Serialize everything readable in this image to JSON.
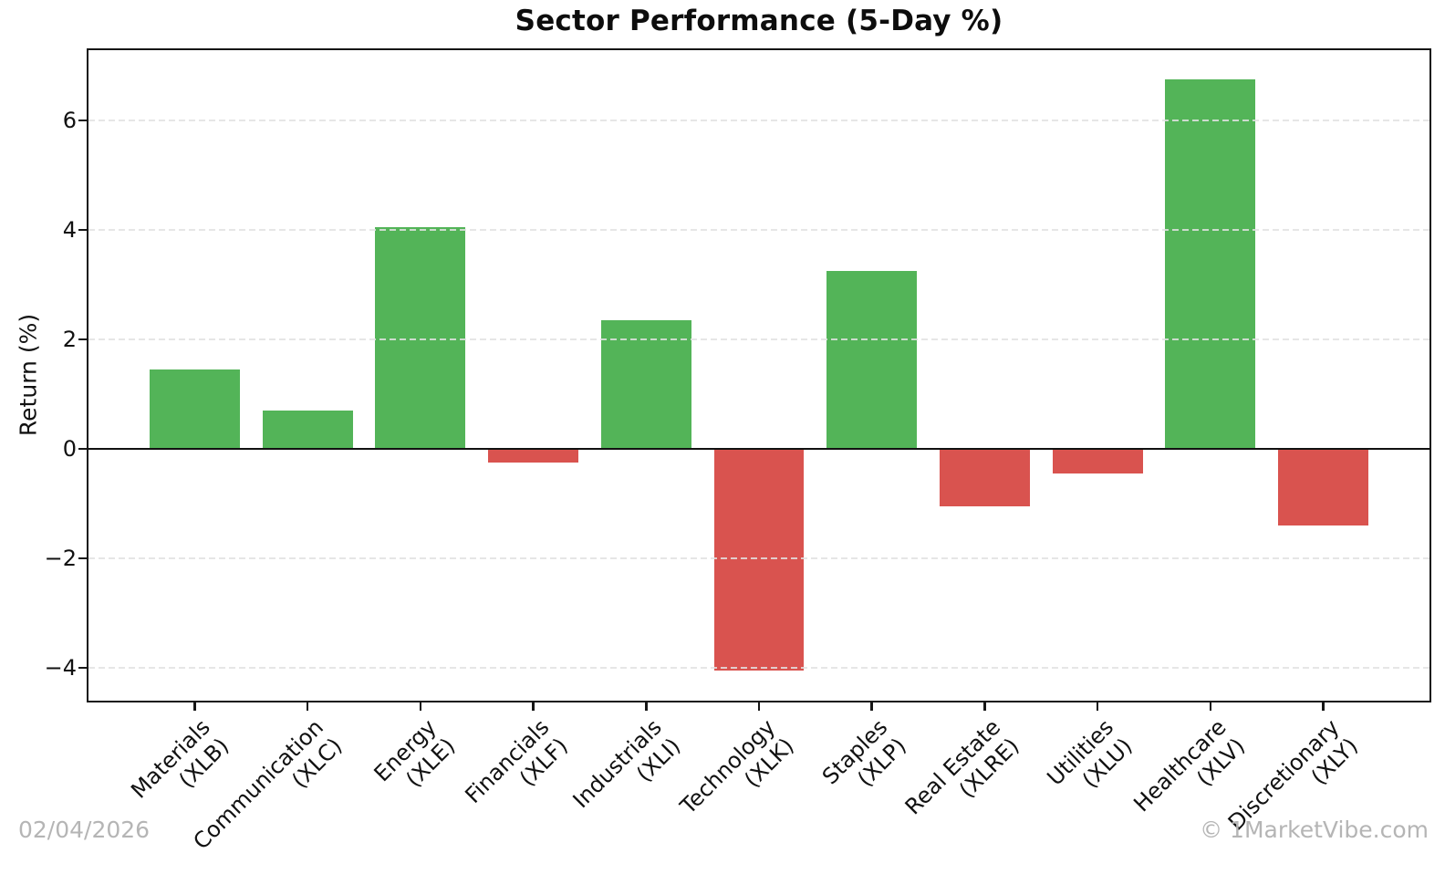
{
  "chart_data": {
    "type": "bar",
    "title": "Sector Performance (5-Day %)",
    "ylabel": "Return (%)",
    "xlabel": "",
    "categories": [
      "Materials",
      "Communication",
      "Energy",
      "Financials",
      "Industrials",
      "Technology",
      "Staples",
      "Real Estate",
      "Utilities",
      "Healthcare",
      "Discretionary"
    ],
    "tickers": [
      "XLB",
      "XLC",
      "XLE",
      "XLF",
      "XLI",
      "XLK",
      "XLP",
      "XLRE",
      "XLU",
      "XLV",
      "XLY"
    ],
    "values": [
      1.45,
      0.7,
      4.05,
      -0.25,
      2.35,
      -4.05,
      3.25,
      -1.05,
      -0.45,
      6.75,
      -1.4
    ],
    "yticks": [
      6,
      4,
      2,
      0,
      -2,
      -4
    ],
    "ytick_labels": [
      "6",
      "4",
      "2",
      "0",
      "−2",
      "−4"
    ],
    "ylim": [
      -4.6,
      7.28
    ],
    "grid": true,
    "grid_style": "dashed",
    "zero_line": true,
    "legend": "none",
    "positive_color": "#53b458",
    "negative_color": "#d9534f",
    "gridline_color": "#e2e2e2"
  },
  "footer": {
    "date": "02/04/2026",
    "credit": "© 1MarketVibe.com"
  }
}
